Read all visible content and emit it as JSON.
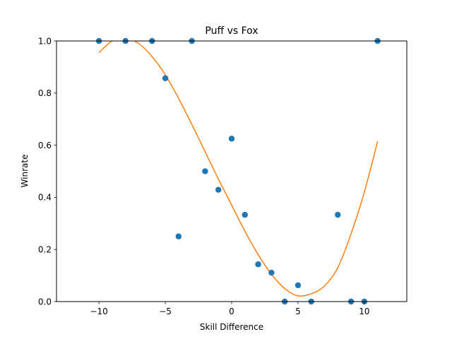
{
  "chart_data": {
    "type": "scatter",
    "title": "Puff vs Fox",
    "xlabel": "Skill Difference",
    "ylabel": "Winrate",
    "xlim": [
      -13.2,
      13.2
    ],
    "ylim": [
      0,
      1
    ],
    "xticks": [
      -10,
      -5,
      0,
      5,
      10
    ],
    "xtick_labels": [
      "−10",
      "−5",
      "0",
      "5",
      "10"
    ],
    "yticks": [
      0,
      0.2,
      0.4,
      0.6,
      0.8,
      1.0
    ],
    "ytick_labels": [
      "0.0",
      "0.2",
      "0.4",
      "0.6",
      "0.8",
      "1.0"
    ],
    "grid": false,
    "series": [
      {
        "type": "scatter",
        "color": "#1f77b4",
        "x": [
          -10,
          -8,
          -6,
          -5,
          -4,
          -3,
          -2,
          -1,
          0,
          1,
          2,
          3,
          4,
          5,
          6,
          8,
          9,
          10,
          11
        ],
        "y": [
          1.0,
          1.0,
          1.0,
          0.857,
          0.25,
          1.0,
          0.5,
          0.429,
          0.625,
          0.333,
          0.143,
          0.111,
          0.0,
          0.0625,
          0.0,
          0.333,
          0.0,
          0.0,
          1.0
        ]
      },
      {
        "type": "line",
        "color": "#ff7f0e",
        "x": [
          -10,
          -9,
          -8,
          -7,
          -6,
          -5,
          -4,
          -3,
          -2,
          -1,
          0,
          1,
          2,
          3,
          4,
          5,
          6,
          7,
          8,
          9,
          10,
          11
        ],
        "y": [
          0.955,
          1.0,
          1.01,
          0.99,
          0.94,
          0.87,
          0.78,
          0.68,
          0.575,
          0.47,
          0.37,
          0.27,
          0.18,
          0.105,
          0.05,
          0.022,
          0.03,
          0.06,
          0.13,
          0.26,
          0.42,
          0.615
        ]
      }
    ]
  }
}
